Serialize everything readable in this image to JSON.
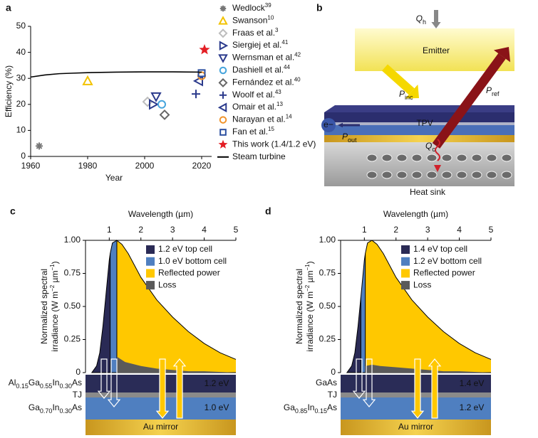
{
  "chart_data": [
    {
      "type": "scatter",
      "panel": "a",
      "xlabel": "Year",
      "ylabel": "Efficiency (%)",
      "xlim": [
        1960,
        2023.5
      ],
      "xticks": [
        1960,
        1980,
        2000,
        2020
      ],
      "ylim": [
        0,
        50
      ],
      "yticks": [
        0,
        10,
        20,
        30,
        40,
        50
      ],
      "series": [
        {
          "name": "Wedlock",
          "ref": "39",
          "marker": "asterisk",
          "color": "#777777",
          "x": [
            1963
          ],
          "values": [
            4
          ]
        },
        {
          "name": "Swanson",
          "ref": "10",
          "marker": "triangle-up",
          "color": "#f2c200",
          "x": [
            1980
          ],
          "values": [
            29
          ]
        },
        {
          "name": "Fraas et al.",
          "ref": "3",
          "marker": "diamond",
          "color": "#bdbdbd",
          "x": [
            2001
          ],
          "values": [
            21
          ]
        },
        {
          "name": "Siergiej et al.",
          "ref": "41",
          "marker": "triangle-right",
          "color": "#2b3a8c",
          "x": [
            2003
          ],
          "values": [
            20
          ]
        },
        {
          "name": "Wernsman et al.",
          "ref": "42",
          "marker": "triangle-down",
          "color": "#2b3a8c",
          "x": [
            2004
          ],
          "values": [
            23
          ]
        },
        {
          "name": "Dashiell et al.",
          "ref": "44",
          "marker": "circle",
          "color": "#45a4dc",
          "x": [
            2006
          ],
          "values": [
            20
          ]
        },
        {
          "name": "Fernández et al.",
          "ref": "40",
          "marker": "diamond",
          "color": "#666666",
          "x": [
            2007
          ],
          "values": [
            16
          ]
        },
        {
          "name": "Woolf et al.",
          "ref": "43",
          "marker": "plus",
          "color": "#2b3a8c",
          "x": [
            2018
          ],
          "values": [
            24
          ]
        },
        {
          "name": "Omair et al.",
          "ref": "13",
          "marker": "triangle-left",
          "color": "#2b3a8c",
          "x": [
            2019
          ],
          "values": [
            29
          ]
        },
        {
          "name": "Narayan et al.",
          "ref": "14",
          "marker": "circle",
          "color": "#f0932b",
          "x": [
            2020
          ],
          "values": [
            31
          ]
        },
        {
          "name": "Fan et al.",
          "ref": "15",
          "marker": "square",
          "color": "#2b4fa0",
          "x": [
            2020
          ],
          "values": [
            32
          ]
        },
        {
          "name": "This work (1.4/1.2 eV)",
          "marker": "star",
          "color": "#e31e24",
          "x": [
            2021
          ],
          "values": [
            41
          ]
        },
        {
          "name": "Steam turbine",
          "marker": "line",
          "color": "#000000",
          "x": [
            1960,
            1965,
            1970,
            1975,
            1980,
            1990,
            2000,
            2010,
            2020
          ],
          "values": [
            30.5,
            31.3,
            31.8,
            32,
            32.2,
            32.4,
            32.5,
            32.5,
            32.4
          ]
        }
      ]
    },
    {
      "type": "area",
      "panel": "c",
      "xlabel": "Wavelength (µm)",
      "ylabel": {
        "line1": "Normalized spectral",
        "line2": [
          "irradiance (W m",
          "−2",
          " µm",
          "−1",
          ")"
        ]
      },
      "xlim": [
        0.25,
        5
      ],
      "xticks": [
        1,
        2,
        3,
        4,
        5
      ],
      "ylim": [
        0,
        1
      ],
      "yticks": [
        0,
        0.25,
        {
          "value": 0.5,
          "label": "0.50"
        },
        0.75,
        {
          "value": 1,
          "label": "1.00"
        }
      ],
      "series": [
        {
          "name": "1.2 eV top cell",
          "color": "#2a2a55",
          "x": [
            0.45,
            0.6,
            0.7,
            0.8,
            0.9,
            1.0,
            1.03
          ],
          "values": [
            0,
            0.05,
            0.15,
            0.35,
            0.6,
            0.85,
            0.9
          ]
        },
        {
          "name": "1.0 eV bottom cell",
          "color": "#4f7fc0",
          "x": [
            1.03,
            1.1,
            1.24
          ],
          "values": [
            0.9,
            0.98,
            1.0
          ]
        },
        {
          "name": "Reflected power",
          "color": "#ffc800",
          "x": [
            1.24,
            1.4,
            1.6,
            1.8,
            2,
            2.5,
            3,
            3.5,
            4,
            4.5,
            5
          ],
          "values": [
            1.0,
            0.97,
            0.9,
            0.81,
            0.72,
            0.55,
            0.42,
            0.31,
            0.22,
            0.15,
            0.1
          ]
        },
        {
          "name": "Loss",
          "color": "#5a5a5a",
          "x": [
            1.24,
            1.5,
            2,
            2.5,
            3,
            3.5,
            4,
            5
          ],
          "values": [
            0.12,
            0.08,
            0.05,
            0.03,
            0.02,
            0.01,
            0.01,
            0
          ]
        }
      ],
      "layers": {
        "top": "Al0.15Ga0.55In0.30As",
        "tj": "TJ",
        "bottom": "Ga0.70In0.30As",
        "top_gap": "1.2 eV",
        "bottom_gap": "1.0 eV",
        "mirror": "Au mirror"
      }
    },
    {
      "type": "area",
      "panel": "d",
      "xlabel": "Wavelength (µm)",
      "ylabel": {
        "line1": "Normalized spectral",
        "line2": [
          "irradiance (W m",
          "−2",
          " µm",
          "−1",
          ")"
        ]
      },
      "xlim": [
        0.25,
        5
      ],
      "xticks": [
        1,
        2,
        3,
        4,
        5
      ],
      "ylim": [
        0,
        1
      ],
      "yticks": [
        0,
        0.25,
        {
          "value": 0.5,
          "label": "0.50"
        },
        0.75,
        {
          "value": 1,
          "label": "1.00"
        }
      ],
      "series": [
        {
          "name": "1.4 eV top cell",
          "color": "#2a2a55",
          "x": [
            0.45,
            0.6,
            0.7,
            0.8,
            0.89
          ],
          "values": [
            0,
            0.05,
            0.15,
            0.35,
            0.57
          ]
        },
        {
          "name": "1.2 eV bottom cell",
          "color": "#4f7fc0",
          "x": [
            0.89,
            1.0,
            1.03
          ],
          "values": [
            0.57,
            0.85,
            0.9
          ]
        },
        {
          "name": "Reflected power",
          "color": "#ffc800",
          "x": [
            1.03,
            1.1,
            1.24,
            1.4,
            1.6,
            1.8,
            2,
            2.5,
            3,
            3.5,
            4,
            4.5,
            5
          ],
          "values": [
            0.9,
            0.98,
            1.0,
            0.97,
            0.9,
            0.81,
            0.72,
            0.55,
            0.42,
            0.31,
            0.22,
            0.15,
            0.1
          ]
        },
        {
          "name": "Loss",
          "color": "#5a5a5a",
          "x": [
            1.03,
            1.24,
            1.5,
            2,
            2.5,
            3,
            3.5,
            4,
            5
          ],
          "values": [
            0.05,
            0.06,
            0.05,
            0.04,
            0.03,
            0.02,
            0.01,
            0.01,
            0
          ]
        }
      ],
      "layers": {
        "top": "GaAs",
        "tj": "TJ",
        "bottom": "Ga0.85In0.15As",
        "top_gap": "1.4 eV",
        "bottom_gap": "1.2 eV",
        "mirror": "Au mirror"
      }
    }
  ],
  "diagram": {
    "panel": "b",
    "emitter": "Emitter",
    "tpv": "TPV",
    "heat_sink": "Heat sink",
    "electron": "e−",
    "q_h": {
      "main": "Q",
      "sub": "h"
    },
    "p_inc": {
      "main": "P",
      "sub": "inc"
    },
    "p_ref": {
      "main": "P",
      "sub": "ref"
    },
    "p_out": {
      "main": "P",
      "sub": "out"
    },
    "q_c": {
      "main": "Q",
      "sub": "c"
    }
  }
}
